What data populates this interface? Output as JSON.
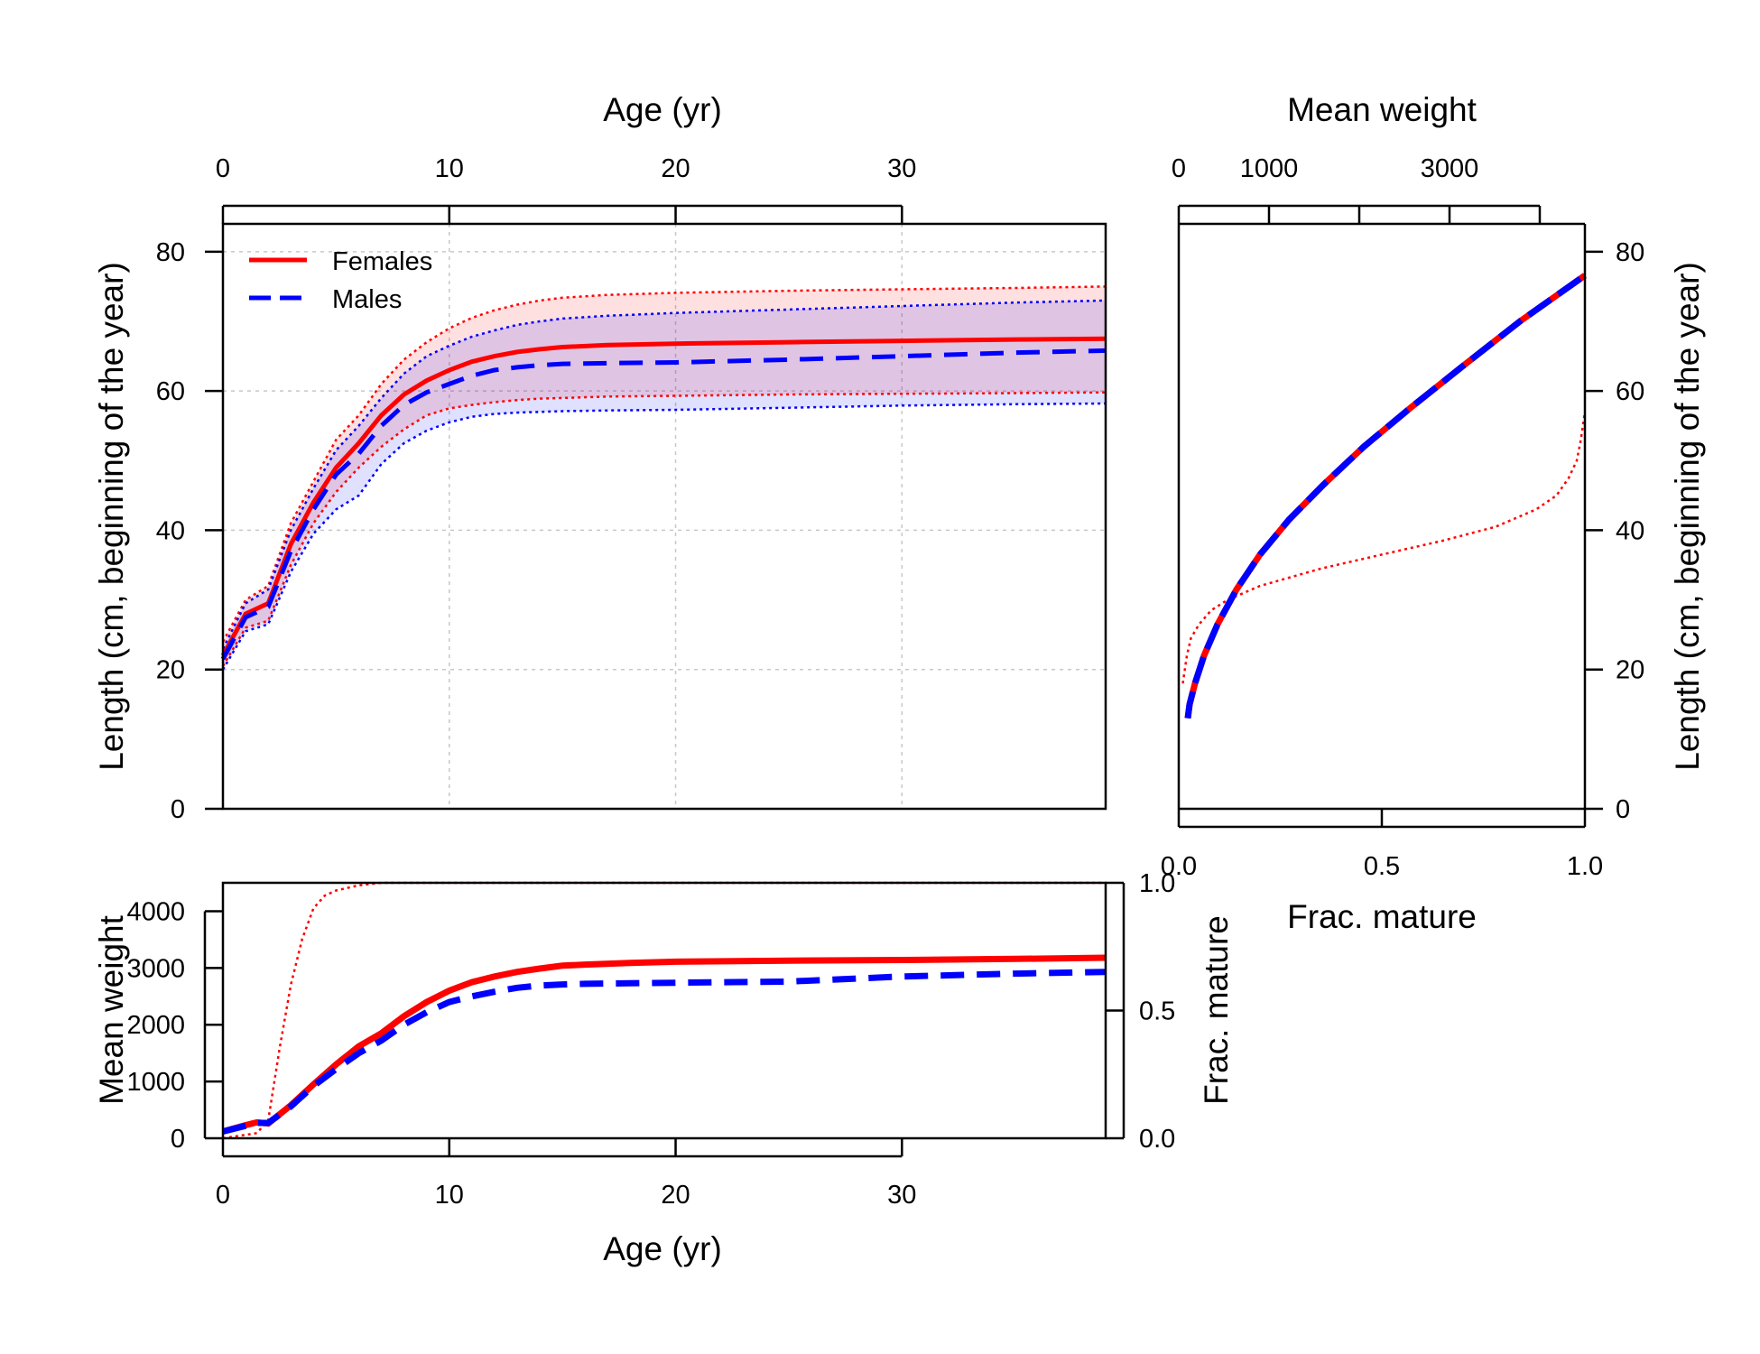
{
  "chart_data": [
    {
      "id": "length",
      "type": "line",
      "xlabel": "Age (yr)",
      "ylabel": "Length (cm, beginning of the year)",
      "xlim": [
        0,
        39
      ],
      "ylim": [
        0,
        84
      ],
      "xticks": [
        0,
        10,
        20,
        30
      ],
      "yticks": [
        0,
        20,
        40,
        60,
        80
      ],
      "grid": true,
      "legend": {
        "position": "top-left",
        "entries": [
          "Females",
          "Males"
        ]
      },
      "x": [
        0,
        1,
        2,
        3,
        4,
        5,
        6,
        7,
        8,
        9,
        10,
        11,
        12,
        13,
        14,
        15,
        17,
        20,
        25,
        30,
        35,
        39
      ],
      "series": [
        {
          "name": "Females",
          "color": "#ff0000",
          "dash": "solid",
          "values": [
            22,
            28,
            29.5,
            38,
            44,
            49,
            52.5,
            56.5,
            59.5,
            61.5,
            63,
            64.2,
            65,
            65.6,
            66,
            66.3,
            66.6,
            66.8,
            67,
            67.2,
            67.4,
            67.5
          ],
          "lower": [
            20.5,
            26,
            27,
            35,
            41,
            45.5,
            49,
            52,
            54.5,
            56.5,
            57.5,
            58,
            58.4,
            58.7,
            58.9,
            59,
            59.2,
            59.3,
            59.5,
            59.6,
            59.7,
            59.8
          ],
          "upper": [
            24,
            30,
            32,
            41,
            47,
            53,
            56.5,
            61,
            64.5,
            67,
            69,
            70.5,
            71.6,
            72.4,
            73,
            73.4,
            73.8,
            74.1,
            74.4,
            74.6,
            74.8,
            75
          ]
        },
        {
          "name": "Males",
          "color": "#0000ff",
          "dash": "dashed",
          "values": [
            21.5,
            27.5,
            29,
            37,
            43,
            48,
            51,
            55,
            58,
            59.8,
            61,
            62.2,
            63,
            63.4,
            63.7,
            63.9,
            64,
            64.1,
            64.5,
            65,
            65.5,
            65.8
          ],
          "lower": [
            20,
            25.5,
            26.5,
            34,
            39.5,
            43,
            45,
            49.5,
            52.5,
            54.3,
            55.5,
            56.3,
            56.7,
            56.9,
            57,
            57.1,
            57.2,
            57.3,
            57.6,
            57.9,
            58.1,
            58.2
          ],
          "upper": [
            23,
            29.5,
            31.5,
            40,
            46,
            51.5,
            55,
            59,
            62.5,
            65,
            66.5,
            67.8,
            68.7,
            69.5,
            70,
            70.4,
            70.8,
            71.2,
            71.7,
            72.2,
            72.7,
            73
          ]
        }
      ]
    },
    {
      "id": "weight-age",
      "type": "line",
      "xlabel": "Age (yr)",
      "ylabel": "Mean weight",
      "ylabel_right": "Frac. mature",
      "xlim": [
        0,
        39
      ],
      "ylim": [
        0,
        4500
      ],
      "ylim_right": [
        0,
        1
      ],
      "xticks": [
        0,
        10,
        20,
        30
      ],
      "yticks": [
        0,
        1000,
        2000,
        3000,
        4000
      ],
      "yticks_right": [
        0.0,
        0.5,
        1.0
      ],
      "x": [
        0,
        1,
        1.5,
        2,
        3,
        4,
        5,
        6,
        7,
        8,
        9,
        10,
        11,
        12,
        13,
        14,
        15,
        16,
        18,
        20,
        25,
        30,
        35,
        39
      ],
      "series": [
        {
          "name": "Females",
          "color": "#ff0000",
          "dash": "solid",
          "values": [
            120,
            230,
            280,
            260,
            580,
            950,
            1300,
            1620,
            1850,
            2150,
            2400,
            2600,
            2750,
            2850,
            2930,
            2990,
            3040,
            3060,
            3090,
            3110,
            3130,
            3140,
            3160,
            3180
          ]
        },
        {
          "name": "Males",
          "color": "#0000ff",
          "dash": "dashed",
          "values": [
            120,
            220,
            270,
            270,
            560,
            920,
            1220,
            1500,
            1720,
            2000,
            2220,
            2400,
            2500,
            2580,
            2650,
            2690,
            2710,
            2720,
            2730,
            2740,
            2760,
            2850,
            2900,
            2930
          ]
        }
      ],
      "maturity": {
        "color": "#ff0000",
        "dash": "dotted",
        "x": [
          0,
          1.5,
          2,
          2.5,
          3,
          3.5,
          4,
          4.5,
          5,
          6,
          7,
          8,
          9,
          39
        ],
        "values": [
          0,
          0.02,
          0.07,
          0.35,
          0.6,
          0.78,
          0.9,
          0.95,
          0.97,
          0.99,
          1.0,
          1.0,
          1.0,
          1.0
        ]
      }
    },
    {
      "id": "weight-length",
      "type": "line",
      "xlabel": "Frac. mature",
      "xlabel_top": "Mean weight",
      "ylabel": "Length (cm, beginning of the year)",
      "ylim": [
        0,
        84
      ],
      "xlim": [
        0,
        1
      ],
      "xlim_top": [
        0,
        4500
      ],
      "xticks": [
        0.0,
        0.5,
        1.0
      ],
      "xticks_top": [
        0,
        1000,
        3000
      ],
      "xticks_top_minor": [
        2000,
        4000
      ],
      "yticks": [
        0,
        20,
        40,
        60,
        80
      ],
      "weight_curve": {
        "x": [
          100,
          120,
          180,
          280,
          430,
          640,
          900,
          1220,
          1600,
          2050,
          2560,
          3140,
          3780,
          4500
        ],
        "y": [
          13,
          15,
          18,
          22,
          26.5,
          31.5,
          36.5,
          41.5,
          46.5,
          52,
          57.5,
          63.5,
          70,
          76.6
        ]
      },
      "maturity_curve": {
        "x": [
          0.01,
          0.02,
          0.03,
          0.05,
          0.08,
          0.12,
          0.2,
          0.35,
          0.5,
          0.65,
          0.78,
          0.88,
          0.93,
          0.96,
          0.98,
          0.99,
          1.0
        ],
        "y": [
          18,
          22,
          24.5,
          26.5,
          28.5,
          30,
          32,
          34.5,
          36.5,
          38.5,
          40.5,
          43,
          45,
          47.5,
          50,
          53,
          57
        ]
      }
    }
  ]
}
